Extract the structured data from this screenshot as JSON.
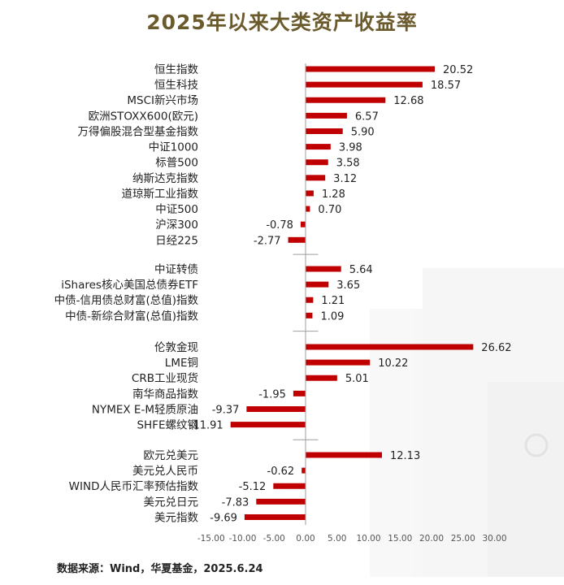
{
  "chart_data": {
    "type": "bar",
    "orientation": "horizontal",
    "title": "2025年以来大类资产收益率",
    "groups": [
      {
        "categories": [
          "恒生指数",
          "恒生科技",
          "MSCI新兴市场",
          "欧洲STOXX600(欧元)",
          "万得偏股混合型基金指数",
          "中证1000",
          "标普500",
          "纳斯达克指数",
          "道琼斯工业指数",
          "中证500",
          "沪深300",
          "日经225"
        ],
        "values": [
          20.52,
          18.57,
          12.68,
          6.57,
          5.9,
          3.98,
          3.58,
          3.12,
          1.28,
          0.7,
          -0.78,
          -2.77
        ]
      },
      {
        "categories": [
          "中证转债",
          "iShares核心美国总债券ETF",
          "中债-信用债总财富(总值)指数",
          "中债-新综合财富(总值)指数"
        ],
        "values": [
          5.64,
          3.65,
          1.21,
          1.09
        ]
      },
      {
        "categories": [
          "伦敦金现",
          "LME铜",
          "CRB工业现货",
          "南华商品指数",
          "NYMEX E-M轻质原油",
          "SHFE螺纹钢"
        ],
        "values": [
          26.62,
          10.22,
          5.01,
          -1.95,
          -9.37,
          -11.91
        ]
      },
      {
        "categories": [
          "欧元兑美元",
          "美元兑人民币",
          "WIND人民币汇率预估指数",
          "美元兑日元",
          "美元指数"
        ],
        "values": [
          12.13,
          -0.62,
          -5.12,
          -7.83,
          -9.69
        ]
      }
    ],
    "xlim": [
      -15,
      30
    ],
    "xticks": [
      "-15.00",
      "-10.00",
      "-5.00",
      "0.00",
      "5.00",
      "10.00",
      "15.00",
      "20.00",
      "25.00",
      "30.00"
    ],
    "bar_color": "#c00000",
    "grid": false
  },
  "footer": {
    "source": "数据来源：Wind，华夏基金，2025.6.24"
  }
}
